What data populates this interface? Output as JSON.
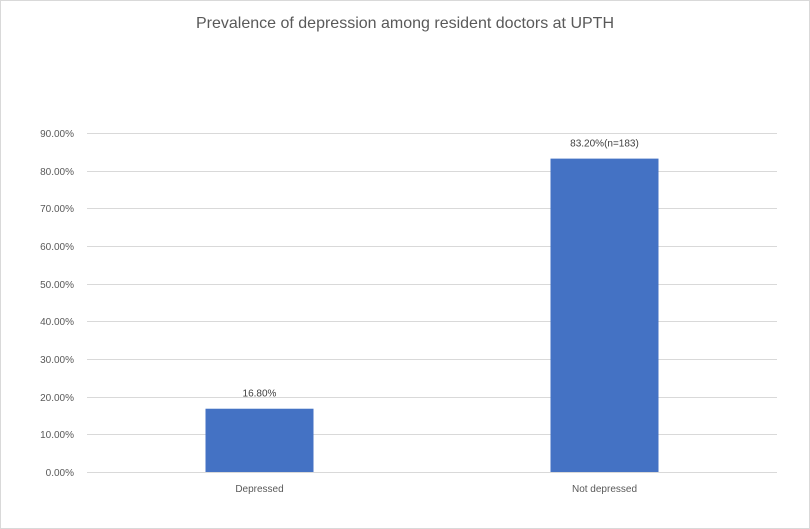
{
  "chart_data": {
    "type": "bar",
    "title": "Prevalence of depression among resident doctors at UPTH",
    "categories": [
      "Depressed",
      "Not depressed"
    ],
    "values": [
      16.8,
      83.2
    ],
    "data_labels": [
      "16.80%",
      "83.20%(n=183)"
    ],
    "ylim": [
      0,
      90
    ],
    "yticks": [
      0,
      10,
      20,
      30,
      40,
      50,
      60,
      70,
      80,
      90
    ],
    "ytick_labels": [
      "0.00%",
      "10.00%",
      "20.00%",
      "30.00%",
      "40.00%",
      "50.00%",
      "60.00%",
      "70.00%",
      "80.00%",
      "90.00%"
    ],
    "xlabel": "",
    "ylabel": "",
    "grid": true,
    "legend": "none",
    "bar_color": "#4472c4"
  }
}
